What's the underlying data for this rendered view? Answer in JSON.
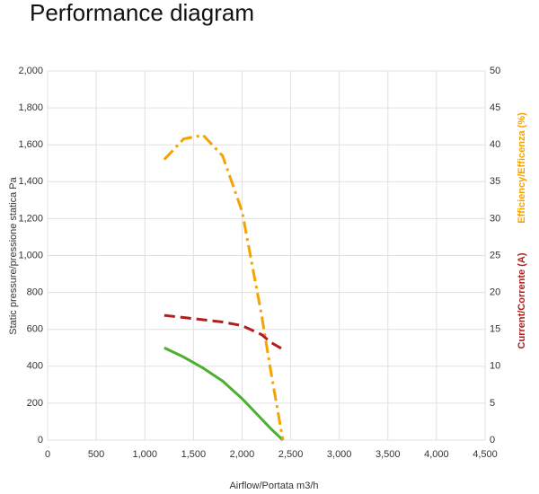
{
  "chart_data": {
    "type": "line",
    "title": "Performance diagram",
    "x_label": "Airflow/Portata m3/h",
    "y_label": "Static pressure/pressione statica Pa",
    "y2_labels": [
      {
        "text": "Efficiency/Efficenza (%)",
        "color": "#f5a300"
      },
      {
        "text": "Current/Corrente (A)",
        "color": "#b01e1e"
      }
    ],
    "x": [
      1200,
      1400,
      1600,
      1800,
      2000,
      2200,
      2300,
      2420
    ],
    "series": [
      {
        "color": "#4caf2f",
        "dash": "none",
        "values": [
          500,
          450,
          390,
          320,
          225,
          115,
          60,
          0
        ]
      },
      {
        "color": "#f5a300",
        "dash": "14 5 3 5",
        "axis": "y2",
        "values": [
          38,
          40.8,
          41.3,
          38.5,
          31,
          17,
          9,
          0
        ]
      },
      {
        "color": "#b01e1e",
        "dash": "12 6",
        "axis": "y2",
        "values": [
          16.9,
          16.6,
          16.3,
          16.0,
          15.5,
          14.3,
          13.2,
          12.3
        ]
      }
    ],
    "xlim": [
      0,
      4500
    ],
    "xticks": [
      0,
      500,
      {
        "value": 1000,
        "label": "1,000"
      },
      {
        "value": 1500,
        "label": "1,500"
      },
      {
        "value": 2000,
        "label": "2,000"
      },
      {
        "value": 2500,
        "label": "2,500"
      },
      {
        "value": 3000,
        "label": "3,000"
      },
      {
        "value": 3500,
        "label": "3,500"
      },
      {
        "value": 4000,
        "label": "4,000"
      },
      {
        "value": 4500,
        "label": "4,500"
      }
    ],
    "ylim": [
      0,
      2000
    ],
    "yticks": [
      0,
      200,
      400,
      600,
      800,
      {
        "value": 1000,
        "label": "1,000"
      },
      {
        "value": 1200,
        "label": "1,200"
      },
      {
        "value": 1400,
        "label": "1,400"
      },
      {
        "value": 1600,
        "label": "1,600"
      },
      {
        "value": 1800,
        "label": "1,800"
      },
      {
        "value": 2000,
        "label": "2,000"
      }
    ],
    "y2lim": [
      0,
      50
    ],
    "y2ticks": [
      0,
      5,
      10,
      15,
      20,
      25,
      30,
      35,
      40,
      45,
      50
    ],
    "grid": true
  }
}
